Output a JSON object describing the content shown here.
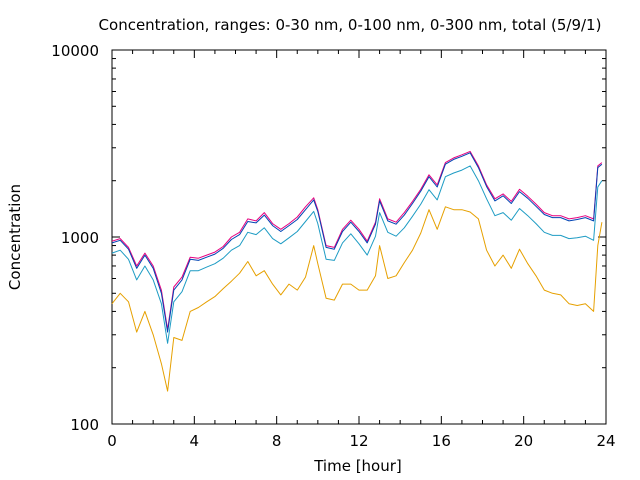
{
  "chart_data": {
    "type": "line",
    "title": "Concentration, ranges: 0-30 nm, 0-100 nm, 0-300 nm, total (5/9/1)",
    "xlabel": "Time [hour]",
    "ylabel": "Concentration",
    "xlim": [
      0,
      24
    ],
    "ylim": [
      100,
      10000
    ],
    "yscale": "log",
    "grid": false,
    "legend": "none",
    "x_ticks": [
      0,
      4,
      8,
      12,
      16,
      20,
      24
    ],
    "y_ticks": [
      100,
      1000,
      10000
    ],
    "x_tick_labels": [
      "0",
      "4",
      "8",
      "12",
      "16",
      "20",
      "24"
    ],
    "y_tick_labels": [
      "100",
      "1000",
      "10000"
    ],
    "x": [
      0,
      0.4,
      0.8,
      1.2,
      1.6,
      2.0,
      2.4,
      2.7,
      3.0,
      3.4,
      3.8,
      4.2,
      4.6,
      5.0,
      5.4,
      5.8,
      6.2,
      6.6,
      7.0,
      7.4,
      7.8,
      8.2,
      8.6,
      9.0,
      9.4,
      9.8,
      10.0,
      10.4,
      10.8,
      11.2,
      11.6,
      12.0,
      12.4,
      12.8,
      13.0,
      13.4,
      13.8,
      14.2,
      14.6,
      15.0,
      15.4,
      15.8,
      16.2,
      16.6,
      17.0,
      17.4,
      17.8,
      18.2,
      18.6,
      19.0,
      19.4,
      19.8,
      20.2,
      20.6,
      21.0,
      21.4,
      21.8,
      22.2,
      22.6,
      23.0,
      23.4,
      23.6,
      23.8
    ],
    "series": [
      {
        "color": "#e6007f",
        "values": [
          950,
          980,
          880,
          700,
          820,
          700,
          520,
          320,
          540,
          610,
          780,
          770,
          800,
          830,
          890,
          1000,
          1060,
          1250,
          1220,
          1350,
          1180,
          1100,
          1180,
          1280,
          1450,
          1620,
          1400,
          900,
          880,
          1100,
          1230,
          1100,
          950,
          1200,
          1600,
          1250,
          1200,
          1350,
          1550,
          1800,
          2150,
          1900,
          2500,
          2650,
          2750,
          2870,
          2400,
          1900,
          1600,
          1700,
          1550,
          1800,
          1650,
          1500,
          1350,
          1300,
          1300,
          1250,
          1270,
          1300,
          1250,
          2400,
          2500
        ]
      },
      {
        "color": "#0044b4",
        "values": [
          930,
          960,
          860,
          680,
          800,
          680,
          500,
          310,
          520,
          590,
          760,
          750,
          780,
          810,
          870,
          970,
          1030,
          1210,
          1190,
          1310,
          1150,
          1070,
          1150,
          1240,
          1400,
          1580,
          1370,
          880,
          860,
          1070,
          1200,
          1070,
          930,
          1170,
          1560,
          1220,
          1170,
          1310,
          1510,
          1760,
          2100,
          1850,
          2450,
          2600,
          2700,
          2820,
          2350,
          1860,
          1560,
          1660,
          1510,
          1750,
          1610,
          1460,
          1320,
          1270,
          1270,
          1220,
          1240,
          1270,
          1220,
          2350,
          2450
        ]
      },
      {
        "color": "#1e9cc4",
        "values": [
          820,
          850,
          760,
          590,
          700,
          590,
          440,
          270,
          450,
          510,
          660,
          660,
          690,
          720,
          770,
          850,
          900,
          1060,
          1030,
          1120,
          980,
          920,
          990,
          1070,
          1210,
          1370,
          1180,
          760,
          750,
          930,
          1040,
          920,
          800,
          1010,
          1350,
          1060,
          1010,
          1120,
          1290,
          1500,
          1790,
          1580,
          2100,
          2200,
          2280,
          2400,
          2000,
          1600,
          1300,
          1350,
          1230,
          1420,
          1300,
          1180,
          1060,
          1020,
          1020,
          980,
          990,
          1010,
          960,
          1850,
          2000
        ]
      },
      {
        "color": "#e6a000",
        "values": [
          440,
          500,
          450,
          310,
          400,
          300,
          210,
          150,
          290,
          280,
          400,
          420,
          450,
          480,
          530,
          580,
          640,
          740,
          620,
          660,
          560,
          490,
          560,
          520,
          610,
          900,
          720,
          470,
          460,
          560,
          560,
          520,
          520,
          620,
          900,
          600,
          620,
          730,
          850,
          1050,
          1400,
          1100,
          1450,
          1400,
          1400,
          1360,
          1250,
          850,
          700,
          800,
          680,
          860,
          720,
          620,
          520,
          500,
          490,
          440,
          430,
          440,
          400,
          900,
          1200
        ]
      }
    ]
  }
}
